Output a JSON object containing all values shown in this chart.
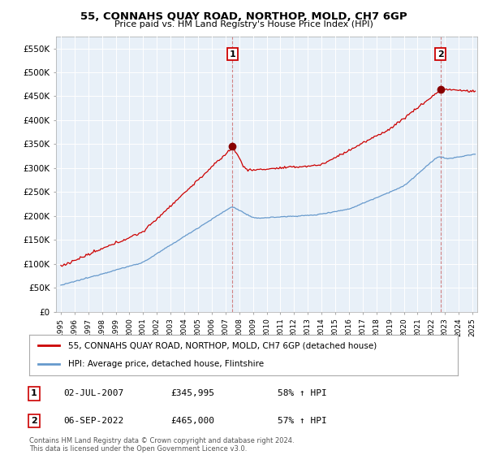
{
  "title": "55, CONNAHS QUAY ROAD, NORTHOP, MOLD, CH7 6GP",
  "subtitle": "Price paid vs. HM Land Registry's House Price Index (HPI)",
  "ylim": [
    0,
    575000
  ],
  "yticks": [
    0,
    50000,
    100000,
    150000,
    200000,
    250000,
    300000,
    350000,
    400000,
    450000,
    500000,
    550000
  ],
  "ytick_labels": [
    "£0",
    "£50K",
    "£100K",
    "£150K",
    "£200K",
    "£250K",
    "£300K",
    "£350K",
    "£400K",
    "£450K",
    "£500K",
    "£550K"
  ],
  "legend_label_red": "55, CONNAHS QUAY ROAD, NORTHOP, MOLD, CH7 6GP (detached house)",
  "legend_label_blue": "HPI: Average price, detached house, Flintshire",
  "annotation1_label": "1",
  "annotation1_date": "02-JUL-2007",
  "annotation1_price": "£345,995",
  "annotation1_info": "58% ↑ HPI",
  "annotation2_label": "2",
  "annotation2_date": "06-SEP-2022",
  "annotation2_price": "£465,000",
  "annotation2_info": "57% ↑ HPI",
  "footer": "Contains HM Land Registry data © Crown copyright and database right 2024.\nThis data is licensed under the Open Government Licence v3.0.",
  "red_color": "#cc0000",
  "blue_color": "#6699cc",
  "vline_color": "#cc0000",
  "background_color": "#ffffff",
  "grid_color": "#cccccc",
  "sale1_year": 2007.5,
  "sale1_price": 345995,
  "sale2_year": 2022.67,
  "sale2_price": 465000
}
